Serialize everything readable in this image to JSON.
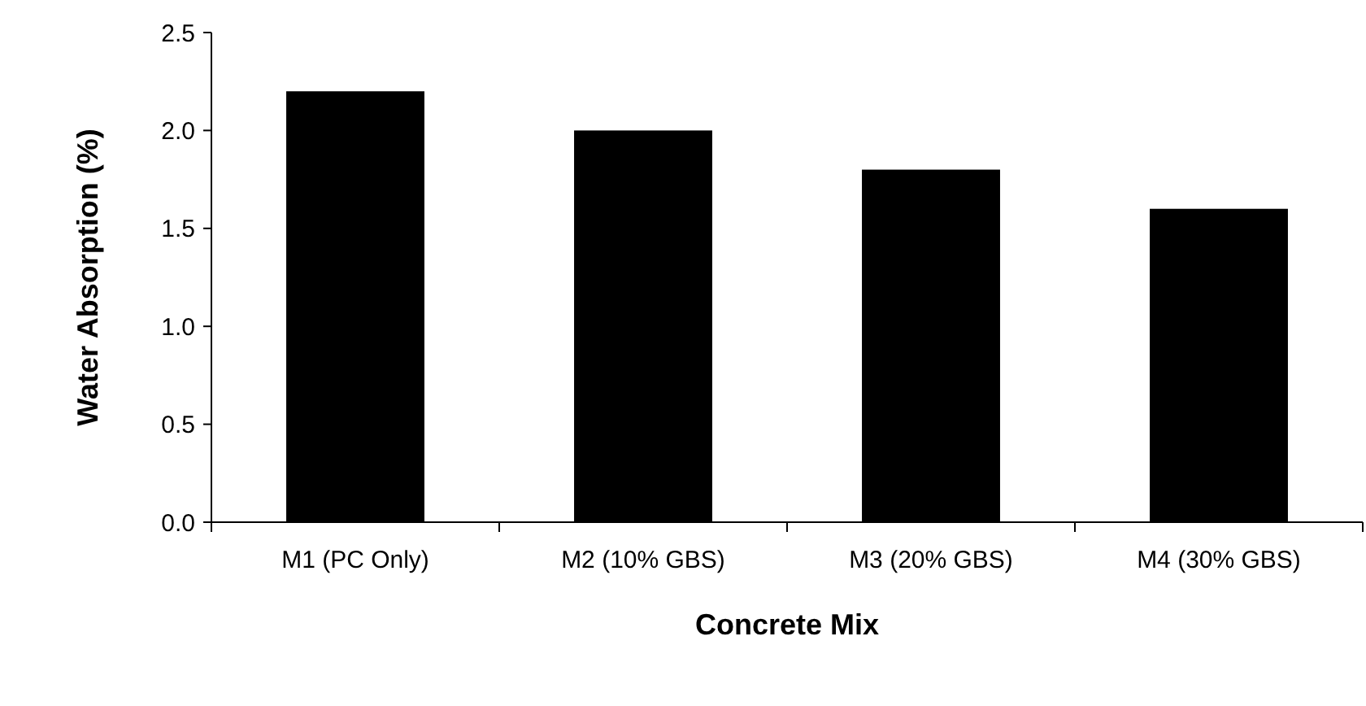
{
  "chart_data": {
    "type": "bar",
    "xlabel": "Concrete Mix",
    "ylabel": "Water Absorption (%)",
    "categories": [
      "M1 (PC Only)",
      "M2 (10% GBS)",
      "M3 (20% GBS)",
      "M4 (30% GBS)"
    ],
    "values": [
      2.2,
      2.0,
      1.8,
      1.6
    ],
    "color": "#000000",
    "ylim": [
      0,
      2.5
    ],
    "yticks": [
      {
        "value": 0,
        "label": "0.0"
      },
      {
        "value": 0.5,
        "label": "0.5"
      },
      {
        "value": 1,
        "label": "1.0"
      },
      {
        "value": 1.5,
        "label": "1.5"
      },
      {
        "value": 2,
        "label": "2.0"
      },
      {
        "value": 2.5,
        "label": "2.5"
      }
    ],
    "grid": false
  }
}
